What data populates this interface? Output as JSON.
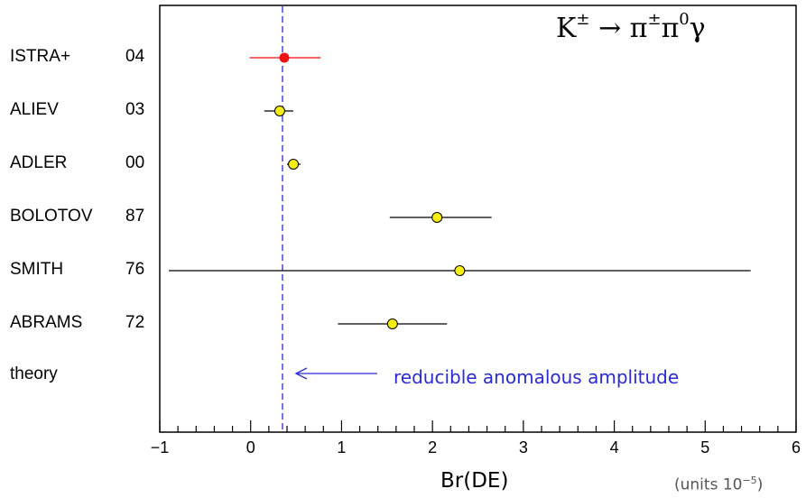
{
  "chart_data": {
    "type": "scatter",
    "xlabel": "Br(DE)",
    "units": "(units 10",
    "units_exp": "−5",
    "units_close": ")",
    "xlim": [
      -1,
      6
    ],
    "xticks": [
      "−1",
      "0",
      "1",
      "2",
      "3",
      "4",
      "5",
      "6"
    ],
    "xtick_values": [
      -1,
      0,
      1,
      2,
      3,
      4,
      5,
      6
    ],
    "reaction": {
      "lhs": "K",
      "lhs_sup": "±",
      "arrow": "→",
      "pi1": "π",
      "pi1_sup": "±",
      "pi2": "π",
      "pi2_sup": "0",
      "gamma": "γ"
    },
    "measurements": [
      {
        "experiment": "ISTRA+",
        "year": "04",
        "value": 0.37,
        "err_low": 0.38,
        "err_high": 0.4,
        "marker_color": "#ee1111",
        "bar_color": "#ee1111"
      },
      {
        "experiment": "ALIEV",
        "year": "03",
        "value": 0.32,
        "err_low": 0.17,
        "err_high": 0.15,
        "marker_color": "#f5ee10",
        "bar_color": "#000000"
      },
      {
        "experiment": "ADLER",
        "year": "00",
        "value": 0.47,
        "err_low": 0.07,
        "err_high": 0.08,
        "marker_color": "#f5ee10",
        "bar_color": "#000000"
      },
      {
        "experiment": "BOLOTOV",
        "year": "87",
        "value": 2.05,
        "err_low": 0.52,
        "err_high": 0.6,
        "marker_color": "#f5ee10",
        "bar_color": "#000000"
      },
      {
        "experiment": "SMITH",
        "year": "76",
        "value": 2.3,
        "err_low": 3.2,
        "err_high": 3.2,
        "marker_color": "#f5ee10",
        "bar_color": "#000000"
      },
      {
        "experiment": "ABRAMS",
        "year": "72",
        "value": 1.56,
        "err_low": 0.6,
        "err_high": 0.6,
        "marker_color": "#f5ee10",
        "bar_color": "#000000"
      }
    ],
    "theory": {
      "label": "theory",
      "value": 0.35,
      "note": "reducible anomalous amplitude",
      "color": "#2a2ad8"
    },
    "grid": false,
    "legend": "none"
  }
}
